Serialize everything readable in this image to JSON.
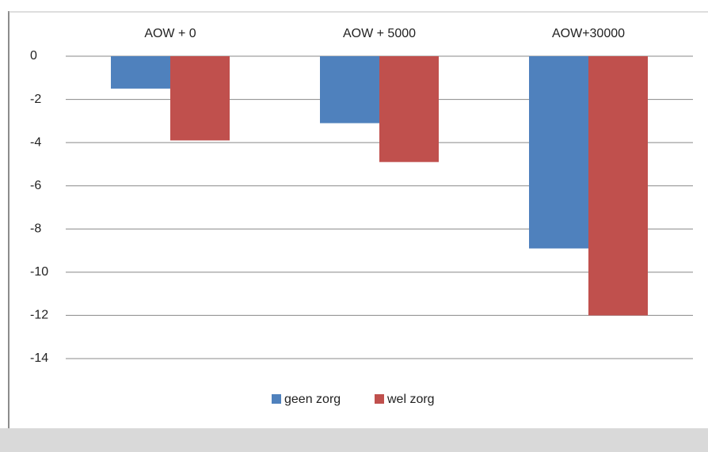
{
  "chart_data": {
    "type": "bar",
    "categories": [
      "AOW + 0",
      "AOW + 5000",
      "AOW+30000"
    ],
    "series": [
      {
        "name": "geen zorg",
        "color": "#4f81bd",
        "values": [
          -1.5,
          -3.1,
          -8.9
        ]
      },
      {
        "name": "wel zorg",
        "color": "#c0504d",
        "values": [
          -3.9,
          -4.9,
          -12
        ]
      }
    ],
    "ylim": [
      -14,
      0
    ],
    "yticks": [
      0,
      -2,
      -4,
      -6,
      -8,
      -10,
      -12,
      -14
    ],
    "grid": true,
    "legend": "bottom"
  }
}
